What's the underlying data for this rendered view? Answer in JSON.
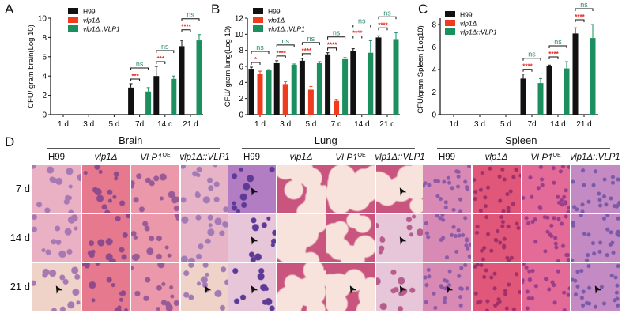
{
  "panels": {
    "A": "A",
    "B": "B",
    "C": "C",
    "D": "D"
  },
  "legend": {
    "items": [
      {
        "label": "H99",
        "color": "#111111",
        "italic": false
      },
      {
        "label": "vlp1Δ",
        "color": "#f03c1e",
        "italic": true
      },
      {
        "label": "vlp1Δ::VLP1",
        "color": "#1b8f5e",
        "italic": true
      }
    ]
  },
  "chart_data": [
    {
      "type": "bar",
      "panel": "A",
      "title": "",
      "ylabel": "CFU/ gram brain(Log 10)",
      "xlabel": "",
      "ylim": [
        0,
        10
      ],
      "yticks": [
        0,
        2,
        4,
        6,
        8,
        10
      ],
      "categories": [
        "1 d",
        "3 d",
        "5 d",
        "7d",
        "14 d",
        "21 d"
      ],
      "series": [
        {
          "name": "H99",
          "values": [
            null,
            null,
            null,
            2.8,
            4.0,
            7.1
          ],
          "errors": [
            null,
            null,
            null,
            0.4,
            1.0,
            0.6
          ]
        },
        {
          "name": "vlp1Δ",
          "values": [
            null,
            null,
            null,
            null,
            null,
            null
          ],
          "errors": [
            null,
            null,
            null,
            null,
            null,
            null
          ]
        },
        {
          "name": "vlp1Δ::VLP1",
          "values": [
            null,
            null,
            null,
            2.4,
            3.7,
            7.7
          ],
          "errors": [
            null,
            null,
            null,
            0.4,
            0.3,
            0.6
          ]
        }
      ],
      "annotations": [
        {
          "category": "7d",
          "h99_vs_vlp1": "***",
          "h99_vs_comp": "ns"
        },
        {
          "category": "14 d",
          "h99_vs_vlp1": "***",
          "h99_vs_comp": "ns"
        },
        {
          "category": "21 d",
          "h99_vs_vlp1": "****",
          "h99_vs_comp": "ns"
        }
      ]
    },
    {
      "type": "bar",
      "panel": "B",
      "title": "",
      "ylabel": "CFU/ gram lung(Log 10)",
      "xlabel": "",
      "ylim": [
        0,
        12
      ],
      "yticks": [
        0,
        2,
        4,
        6,
        8,
        10,
        12
      ],
      "categories": [
        "1 d",
        "3 d",
        "5 d",
        "7 d",
        "14 d",
        "21 d"
      ],
      "series": [
        {
          "name": "H99",
          "values": [
            5.7,
            6.4,
            6.7,
            7.5,
            7.9,
            9.6
          ],
          "errors": [
            0.2,
            0.3,
            0.3,
            0.2,
            0.3,
            0.2
          ]
        },
        {
          "name": "vlp1Δ",
          "values": [
            5.1,
            3.8,
            3.1,
            1.7,
            null,
            null
          ],
          "errors": [
            0.3,
            0.3,
            0.4,
            0.2,
            null,
            null
          ]
        },
        {
          "name": "vlp1Δ::VLP1",
          "values": [
            5.5,
            6.2,
            6.4,
            6.9,
            7.7,
            9.4
          ],
          "errors": [
            0.1,
            0.1,
            0.2,
            0.2,
            1.5,
            0.8
          ]
        }
      ],
      "annotations": [
        {
          "category": "1 d",
          "h99_vs_vlp1": "*",
          "h99_vs_comp": "ns"
        },
        {
          "category": "3 d",
          "h99_vs_vlp1": "****",
          "h99_vs_comp": "ns"
        },
        {
          "category": "5 d",
          "h99_vs_vlp1": "****",
          "h99_vs_comp": "ns"
        },
        {
          "category": "7 d",
          "h99_vs_vlp1": "****",
          "h99_vs_comp": "ns"
        },
        {
          "category": "14 d",
          "h99_vs_vlp1": "****",
          "h99_vs_comp": "ns"
        },
        {
          "category": "21 d",
          "h99_vs_vlp1": "****",
          "h99_vs_comp": "ns"
        }
      ]
    },
    {
      "type": "bar",
      "panel": "C",
      "title": "",
      "ylabel": "CFU/gram Spleen (Log10)",
      "xlabel": "",
      "ylim": [
        0,
        9
      ],
      "yticks": [
        0,
        2,
        4,
        6,
        8
      ],
      "categories": [
        "1d",
        "3 d",
        "5 d",
        "7d",
        "14 d",
        "21 d"
      ],
      "series": [
        {
          "name": "H99",
          "values": [
            null,
            null,
            null,
            3.2,
            4.3,
            7.2
          ],
          "errors": [
            null,
            null,
            null,
            0.4,
            0.1,
            0.5
          ]
        },
        {
          "name": "vlp1Δ",
          "values": [
            null,
            null,
            null,
            null,
            null,
            null
          ],
          "errors": [
            null,
            null,
            null,
            null,
            null,
            null
          ]
        },
        {
          "name": "vlp1Δ::VLP1",
          "values": [
            null,
            null,
            null,
            2.8,
            4.1,
            6.8
          ],
          "errors": [
            null,
            null,
            null,
            0.4,
            0.6,
            1.2
          ]
        }
      ],
      "annotations": [
        {
          "category": "7d",
          "h99_vs_vlp1": "****",
          "h99_vs_comp": "ns"
        },
        {
          "category": "14 d",
          "h99_vs_vlp1": "****",
          "h99_vs_comp": "ns"
        },
        {
          "category": "21 d",
          "h99_vs_vlp1": "****",
          "h99_vs_comp": "ns"
        }
      ]
    }
  ],
  "histology": {
    "rows": [
      "7 d",
      "14 d",
      "21 d"
    ],
    "columns": [
      "H99",
      "vlp1Δ",
      "VLP1",
      "vlp1Δ::VLP1"
    ],
    "column_sup": [
      "",
      "",
      "OE",
      ""
    ],
    "column_italic": [
      false,
      true,
      true,
      true
    ],
    "groups": [
      {
        "title": "Brain",
        "arrows": [
          [
            2,
            0
          ],
          [
            2,
            3
          ]
        ]
      },
      {
        "title": "Lung",
        "arrows": [
          [
            0,
            0
          ],
          [
            1,
            0
          ],
          [
            2,
            0
          ],
          [
            0,
            3
          ],
          [
            1,
            3
          ],
          [
            2,
            3
          ],
          [
            2,
            2
          ]
        ]
      },
      {
        "title": "Spleen",
        "arrows": [
          [
            2,
            0
          ],
          [
            2,
            3
          ]
        ]
      }
    ]
  },
  "colors": {
    "h99": "#111111",
    "vlp1": "#f03c1e",
    "comp": "#1b8f5e",
    "sig": "#e8281e",
    "ns": "#2a8a6a"
  }
}
